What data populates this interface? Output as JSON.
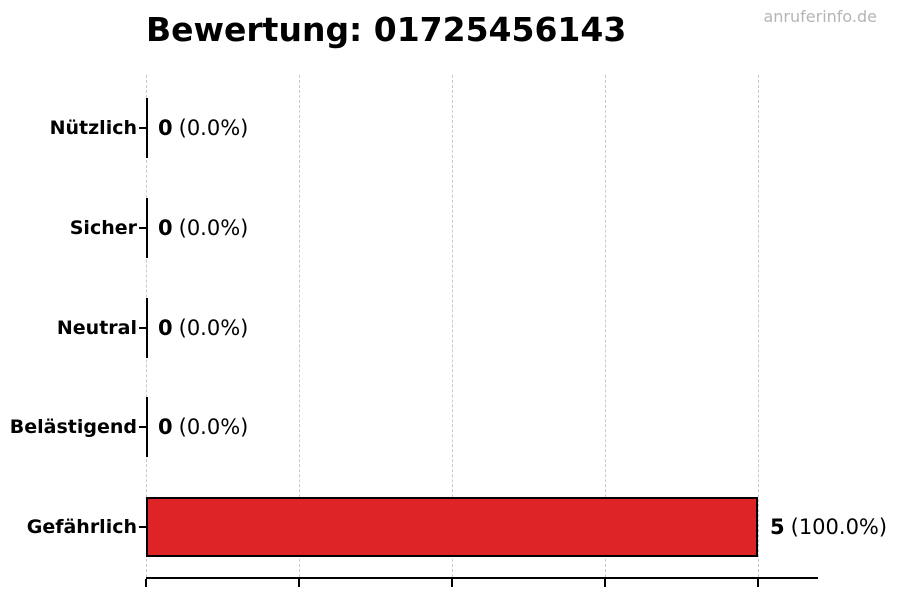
{
  "header": {
    "watermark": "anruferinfo.de"
  },
  "chart_data": {
    "type": "bar",
    "orientation": "horizontal",
    "title": "Bewertung: 01725456143",
    "categories": [
      "Nützlich",
      "Sicher",
      "Neutral",
      "Belästigend",
      "Gefährlich"
    ],
    "values": [
      0,
      0,
      0,
      0,
      5
    ],
    "value_annotations": [
      "(0.0%)",
      "(0.0%)",
      "(0.0%)",
      "(0.0%)",
      "(100.0%)"
    ],
    "xlim": [
      0,
      5.5
    ],
    "xticks": [
      0,
      1.25,
      2.5,
      3.75,
      5
    ],
    "xtick_labels_visible": false,
    "grid": true,
    "gridline_color": "#c9c9c9",
    "bar_color": "#de2427",
    "bar_edge_color": "#000000",
    "legend": "none"
  }
}
